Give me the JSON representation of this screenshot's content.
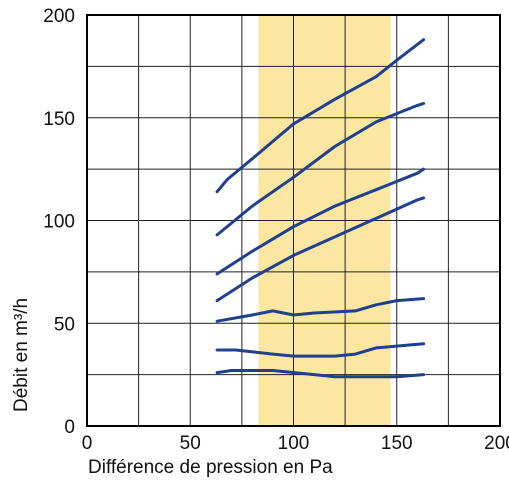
{
  "chart_data": {
    "type": "line",
    "title": "",
    "xlabel": "Différence de pression en Pa",
    "ylabel": "Débit en m³/h",
    "xlim": [
      0,
      200
    ],
    "ylim": [
      0,
      200
    ],
    "x_ticks": [
      0,
      50,
      100,
      150,
      200
    ],
    "y_ticks": [
      0,
      50,
      100,
      150,
      200
    ],
    "grid": true,
    "legend": "none",
    "highlight_band": {
      "x_from": 83,
      "x_to": 147,
      "color": "#fbe7a1"
    },
    "line_color": "#1f3f8f",
    "series": [
      {
        "x": [
          63,
          68,
          80,
          100,
          120,
          140,
          150,
          163
        ],
        "values": [
          114,
          120,
          130,
          147,
          159,
          170,
          178,
          188
        ]
      },
      {
        "x": [
          63,
          80,
          100,
          120,
          140,
          160,
          163
        ],
        "values": [
          93,
          107,
          121,
          136,
          148,
          156,
          157
        ]
      },
      {
        "x": [
          63,
          80,
          100,
          120,
          140,
          160,
          163
        ],
        "values": [
          74,
          85,
          97,
          107,
          115,
          123,
          125
        ]
      },
      {
        "x": [
          63,
          80,
          100,
          120,
          140,
          160,
          163
        ],
        "values": [
          61,
          72,
          83,
          92,
          101,
          110,
          111
        ]
      },
      {
        "x": [
          63,
          80,
          90,
          100,
          110,
          130,
          140,
          150,
          163
        ],
        "values": [
          51,
          54,
          56,
          54,
          55,
          56,
          59,
          61,
          62
        ]
      },
      {
        "x": [
          63,
          72,
          90,
          100,
          110,
          120,
          130,
          140,
          163
        ],
        "values": [
          37,
          37,
          35,
          34,
          34,
          34,
          35,
          38,
          40
        ]
      },
      {
        "x": [
          63,
          70,
          90,
          110,
          120,
          130,
          140,
          150,
          163
        ],
        "values": [
          26,
          27,
          27,
          25,
          24,
          24,
          24,
          24,
          25
        ]
      }
    ]
  }
}
